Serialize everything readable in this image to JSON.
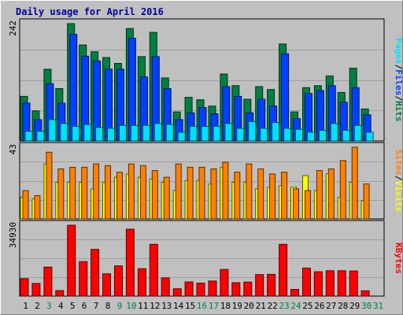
{
  "chart_data": {
    "type": "bar",
    "title": "Daily usage for April 2016",
    "categories": [
      "1",
      "2",
      "3",
      "4",
      "5",
      "6",
      "7",
      "8",
      "9",
      "10",
      "11",
      "12",
      "13",
      "14",
      "15",
      "16",
      "17",
      "18",
      "19",
      "20",
      "21",
      "22",
      "23",
      "24",
      "25",
      "26",
      "27",
      "28",
      "29",
      "30",
      "31"
    ],
    "weekend_days": [
      "3",
      "9",
      "10",
      "16",
      "17",
      "23",
      "24",
      "30",
      "31"
    ],
    "panels": [
      {
        "name": "hits-files-pages",
        "ymax_label": "242",
        "ylim": [
          0,
          242
        ],
        "side_label": [
          "Pages",
          "Files",
          "Hits"
        ],
        "series": [
          {
            "name": "Hits",
            "color": "#008040",
            "values": [
              92,
              62,
              148,
              108,
              242,
              198,
              184,
              172,
              160,
              232,
              174,
              224,
              130,
              60,
              90,
              85,
              72,
              138,
              114,
              86,
              112,
              106,
              200,
              60,
              110,
              114,
              134,
              100,
              150,
              66,
              0
            ]
          },
          {
            "name": "Files",
            "color": "#0040ff",
            "values": [
              78,
              44,
              118,
              78,
              220,
              175,
              165,
              148,
              148,
              212,
              132,
              174,
              108,
              44,
              58,
              69,
              56,
              112,
              92,
              58,
              86,
              72,
              180,
              46,
              98,
              104,
              114,
              80,
              110,
              54,
              0
            ]
          },
          {
            "name": "Pages",
            "color": "#00e0ff",
            "values": [
              20,
              20,
              44,
              36,
              30,
              34,
              28,
              26,
              32,
              32,
              32,
              36,
              34,
              18,
              30,
              30,
              30,
              36,
              26,
              40,
              26,
              38,
              26,
              24,
              18,
              22,
              36,
              22,
              32,
              18,
              0
            ]
          }
        ]
      },
      {
        "name": "visits-sites",
        "ymax_label": "43",
        "ylim": [
          0,
          43
        ],
        "side_label": [
          "Sites",
          "Visits"
        ],
        "series": [
          {
            "name": "Visits",
            "color": "#ffff00",
            "values": [
              13,
              12,
              33,
              22,
              22,
              22,
              18,
              22,
              25,
              27,
              25,
              24,
              22,
              17,
              23,
              23,
              21,
              31,
              22,
              22,
              18,
              19,
              20,
              19,
              26,
              17,
              27,
              13,
              22,
              11,
              0
            ]
          },
          {
            "name": "Sites",
            "color": "#ff8000",
            "values": [
              17,
              14,
              40,
              30,
              31,
              31,
              33,
              32,
              28,
              33,
              32,
              29,
              25,
              33,
              31,
              31,
              30,
              34,
              28,
              33,
              30,
              27,
              28,
              18,
              17,
              29,
              30,
              35,
              43,
              21,
              0
            ]
          }
        ]
      },
      {
        "name": "kbytes",
        "ymax_label": "34930",
        "ylim": [
          0,
          34930
        ],
        "side_label": [
          "KBytes"
        ],
        "series": [
          {
            "name": "KBytes",
            "color": "#ff0000",
            "values": [
              8600,
              6200,
              14300,
              2700,
              34930,
              17000,
              23000,
              11000,
              14900,
              33000,
              13500,
              25500,
              9000,
              3600,
              7000,
              6400,
              7400,
              13100,
              6600,
              6900,
              10600,
              10700,
              25500,
              3300,
              13800,
              12000,
              12500,
              12500,
              12400,
              2600,
              0
            ]
          }
        ]
      }
    ]
  }
}
